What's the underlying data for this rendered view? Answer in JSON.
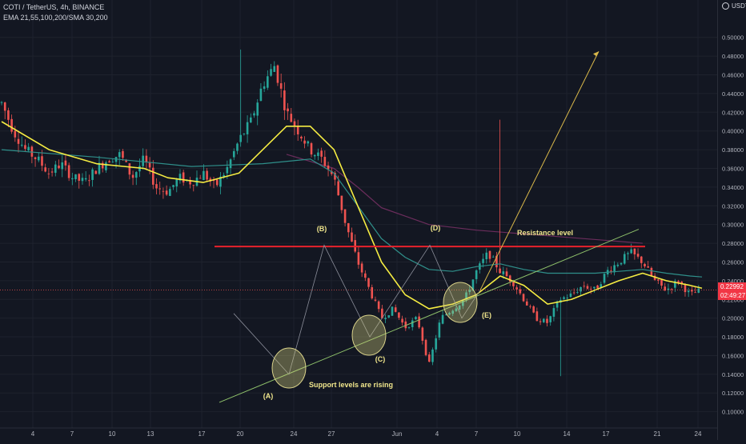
{
  "header": {
    "line1": "COTI / TetherUS, 4h, BINANCE",
    "line2": "EMA 21,55,100,200/SMA 30,200"
  },
  "currency_button": {
    "label": "USDT",
    "icon": "currency-circle-icon"
  },
  "price_tag": {
    "price": "0.22992",
    "countdown": "02:49:27"
  },
  "colors": {
    "background": "#131722",
    "grid": "#1e222d",
    "up": "#26a69a",
    "down": "#ef5350",
    "ema_yellow": "#f5ec42",
    "ema_teal": "#2f8f8a",
    "sma_purple": "#6b2d5c",
    "resistance": "#e8222c",
    "support": "#8fc26b",
    "projection": "#d9b84a",
    "annotation": "#f0e68c"
  },
  "chart_data": {
    "type": "candlestick",
    "symbol": "COTI / TetherUS",
    "timeframe": "4h",
    "exchange": "BINANCE",
    "x_ticks": [
      "4",
      "7",
      "10",
      "13",
      "17",
      "20",
      "24",
      "27",
      "Jun",
      "4",
      "7",
      "10",
      "14",
      "17",
      "21",
      "24"
    ],
    "y_ticks": [
      "0.50000",
      "0.48000",
      "0.46000",
      "0.44000",
      "0.42000",
      "0.40000",
      "0.38000",
      "0.36000",
      "0.34000",
      "0.32000",
      "0.30000",
      "0.28000",
      "0.26000",
      "0.24000",
      "0.22000",
      "0.20000",
      "0.18000",
      "0.16000",
      "0.14000",
      "0.12000",
      "0.10000"
    ],
    "y_range": [
      0.092,
      0.516
    ],
    "last_price": 0.22992,
    "price_path": [
      [
        0,
        0.43
      ],
      [
        1,
        0.4
      ],
      [
        2,
        0.38
      ],
      [
        3,
        0.37
      ],
      [
        4,
        0.355
      ],
      [
        5,
        0.365
      ],
      [
        6,
        0.35
      ],
      [
        7,
        0.345
      ],
      [
        8,
        0.36
      ],
      [
        9,
        0.37
      ],
      [
        10,
        0.375
      ],
      [
        11,
        0.35
      ],
      [
        12,
        0.37
      ],
      [
        13,
        0.34
      ],
      [
        14,
        0.335
      ],
      [
        15,
        0.35
      ],
      [
        16,
        0.345
      ],
      [
        17,
        0.355
      ],
      [
        18,
        0.34
      ],
      [
        19,
        0.36
      ],
      [
        20,
        0.39
      ],
      [
        21,
        0.41
      ],
      [
        22,
        0.45
      ],
      [
        23,
        0.47
      ],
      [
        24,
        0.42
      ],
      [
        25,
        0.4
      ],
      [
        26,
        0.38
      ],
      [
        27,
        0.37
      ],
      [
        28,
        0.35
      ],
      [
        29,
        0.3
      ],
      [
        30,
        0.26
      ],
      [
        31,
        0.23
      ],
      [
        32,
        0.2
      ],
      [
        33,
        0.21
      ],
      [
        34,
        0.19
      ],
      [
        35,
        0.2
      ],
      [
        36,
        0.15
      ],
      [
        37,
        0.2
      ],
      [
        38,
        0.21
      ],
      [
        39,
        0.22
      ],
      [
        40,
        0.25
      ],
      [
        41,
        0.27
      ],
      [
        42,
        0.25
      ],
      [
        43,
        0.24
      ],
      [
        44,
        0.22
      ],
      [
        45,
        0.2
      ],
      [
        46,
        0.195
      ],
      [
        47,
        0.22
      ],
      [
        48,
        0.225
      ],
      [
        49,
        0.235
      ],
      [
        50,
        0.23
      ],
      [
        51,
        0.25
      ],
      [
        52,
        0.26
      ],
      [
        53,
        0.27
      ],
      [
        54,
        0.26
      ],
      [
        55,
        0.24
      ],
      [
        56,
        0.23
      ],
      [
        57,
        0.24
      ],
      [
        58,
        0.225
      ],
      [
        59,
        0.23
      ]
    ],
    "ema_yellow": [
      [
        0,
        0.41
      ],
      [
        4,
        0.38
      ],
      [
        8,
        0.365
      ],
      [
        12,
        0.36
      ],
      [
        14,
        0.35
      ],
      [
        17,
        0.345
      ],
      [
        20,
        0.355
      ],
      [
        22,
        0.38
      ],
      [
        24,
        0.405
      ],
      [
        26,
        0.405
      ],
      [
        28,
        0.38
      ],
      [
        30,
        0.32
      ],
      [
        32,
        0.26
      ],
      [
        34,
        0.225
      ],
      [
        36,
        0.21
      ],
      [
        38,
        0.215
      ],
      [
        40,
        0.225
      ],
      [
        42,
        0.245
      ],
      [
        44,
        0.235
      ],
      [
        46,
        0.215
      ],
      [
        48,
        0.22
      ],
      [
        50,
        0.23
      ],
      [
        52,
        0.24
      ],
      [
        54,
        0.248
      ],
      [
        56,
        0.24
      ],
      [
        58,
        0.235
      ],
      [
        59,
        0.232
      ]
    ],
    "ema_teal": [
      [
        0,
        0.38
      ],
      [
        8,
        0.372
      ],
      [
        16,
        0.362
      ],
      [
        22,
        0.365
      ],
      [
        26,
        0.37
      ],
      [
        28,
        0.355
      ],
      [
        30,
        0.32
      ],
      [
        32,
        0.285
      ],
      [
        34,
        0.265
      ],
      [
        36,
        0.252
      ],
      [
        38,
        0.25
      ],
      [
        40,
        0.255
      ],
      [
        42,
        0.258
      ],
      [
        44,
        0.252
      ],
      [
        46,
        0.248
      ],
      [
        48,
        0.248
      ],
      [
        50,
        0.248
      ],
      [
        52,
        0.25
      ],
      [
        54,
        0.252
      ],
      [
        56,
        0.248
      ],
      [
        58,
        0.245
      ],
      [
        59,
        0.244
      ]
    ],
    "sma_purple": [
      [
        24,
        0.375
      ],
      [
        28,
        0.36
      ],
      [
        30,
        0.34
      ],
      [
        32,
        0.318
      ],
      [
        36,
        0.3
      ],
      [
        40,
        0.294
      ],
      [
        44,
        0.29
      ],
      [
        48,
        0.286
      ],
      [
        52,
        0.282
      ],
      [
        54,
        0.28
      ]
    ],
    "resistance": {
      "price": 0.2765,
      "label": "Resistance level"
    },
    "support_line": {
      "from": [
        0.11,
        274
      ],
      "to": [
        0.295,
        798
      ],
      "label": "Support levels are rising"
    },
    "wave_points": [
      {
        "label": "(A)",
        "price": 0.14
      },
      {
        "label": "(B)",
        "price": 0.278
      },
      {
        "label": "(C)",
        "price": 0.18
      },
      {
        "label": "(D)",
        "price": 0.278
      },
      {
        "label": "(E)",
        "price": 0.2
      }
    ],
    "projection_target": 0.485
  }
}
